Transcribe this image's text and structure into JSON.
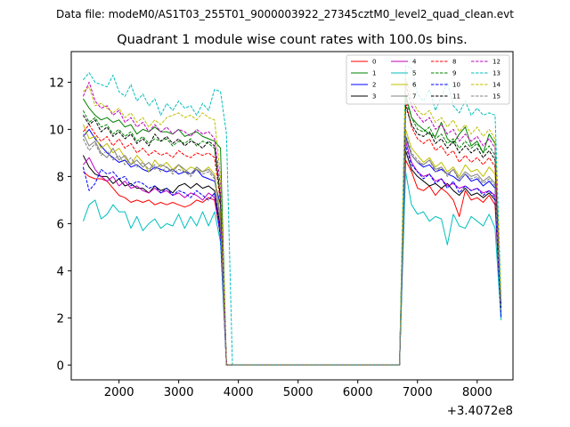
{
  "chart_data": {
    "type": "line",
    "suptitle": "Data file: modeM0/AS1T03_255T01_9000003922_27345cztM0_level2_quad_clean.evt",
    "title": "Quadrant 1 module wise count rates with 100.0s bins.",
    "xlabel": "",
    "ylabel": "",
    "x_offset_label": "+3.4072e8",
    "xlim": [
      1200,
      8600
    ],
    "ylim": [
      -0.63,
      13.3
    ],
    "x_ticks": [
      2000,
      3000,
      4000,
      5000,
      6000,
      7000,
      8000
    ],
    "x_tick_labels": [
      "2000",
      "3000",
      "4000",
      "5000",
      "6000",
      "7000",
      "8000"
    ],
    "y_ticks": [
      0,
      2,
      4,
      6,
      8,
      10,
      12
    ],
    "y_tick_labels": [
      "0",
      "2",
      "4",
      "6",
      "8",
      "10",
      "12"
    ],
    "grid": false,
    "legend_position": "top-right",
    "legend_columns": 4,
    "x_start": 1400,
    "x_step": 100,
    "series": [
      {
        "name": "0",
        "color": "#ff0000",
        "dashed": false,
        "values": [
          8.2,
          8.0,
          7.9,
          7.9,
          7.8,
          7.5,
          7.2,
          7.1,
          6.9,
          7.0,
          6.9,
          7.0,
          6.8,
          6.9,
          6.8,
          6.9,
          6.8,
          6.7,
          6.8,
          7.0,
          6.9,
          7.1,
          7.0,
          5.5,
          0,
          0,
          0,
          0,
          0,
          0,
          0,
          0,
          0,
          0,
          0,
          0,
          0,
          0,
          0,
          0,
          0,
          0,
          0,
          0,
          0,
          0,
          0,
          0,
          0,
          0,
          0,
          0,
          0,
          0,
          8.7,
          8.2,
          7.5,
          7.4,
          7.6,
          7.2,
          7.5,
          7.3,
          7.0,
          6.3,
          7.4,
          7.0,
          7.1,
          6.9,
          7.2,
          6.8,
          2.1
        ]
      },
      {
        "name": "1",
        "color": "#008000",
        "dashed": false,
        "values": [
          11.3,
          10.9,
          10.6,
          10.4,
          10.5,
          10.3,
          10.4,
          10.1,
          10.2,
          9.8,
          10.0,
          9.9,
          10.1,
          9.9,
          9.9,
          9.8,
          10.0,
          9.7,
          9.8,
          9.9,
          9.7,
          9.6,
          9.5,
          9.2,
          0,
          0,
          0,
          0,
          0,
          0,
          0,
          0,
          0,
          0,
          0,
          0,
          0,
          0,
          0,
          0,
          0,
          0,
          0,
          0,
          0,
          0,
          0,
          0,
          0,
          0,
          0,
          0,
          0,
          0,
          11.5,
          10.5,
          10.2,
          10.0,
          9.8,
          9.7,
          10.3,
          9.6,
          9.4,
          9.8,
          10.1,
          9.3,
          9.5,
          9.0,
          9.8,
          9.4,
          2.5
        ]
      },
      {
        "name": "2",
        "color": "#0000ff",
        "dashed": false,
        "values": [
          9.7,
          10.0,
          9.6,
          9.3,
          9.0,
          8.8,
          8.6,
          8.7,
          8.4,
          8.5,
          8.3,
          8.2,
          8.4,
          8.3,
          8.2,
          8.3,
          8.1,
          8.2,
          8.1,
          8.3,
          8.0,
          7.9,
          7.8,
          6.8,
          0,
          0,
          0,
          0,
          0,
          0,
          0,
          0,
          0,
          0,
          0,
          0,
          0,
          0,
          0,
          0,
          0,
          0,
          0,
          0,
          0,
          0,
          0,
          0,
          0,
          0,
          0,
          0,
          0,
          0,
          9.7,
          8.9,
          8.6,
          8.4,
          8.5,
          8.2,
          8.3,
          8.1,
          8.0,
          7.8,
          8.1,
          7.8,
          7.9,
          7.6,
          7.8,
          7.5,
          2.0
        ]
      },
      {
        "name": "3",
        "color": "#000000",
        "dashed": false,
        "values": [
          8.9,
          8.4,
          8.1,
          8.0,
          8.0,
          7.7,
          7.9,
          7.6,
          7.7,
          7.5,
          7.5,
          7.3,
          7.6,
          7.4,
          7.5,
          7.3,
          7.6,
          7.7,
          7.5,
          7.7,
          7.5,
          7.6,
          7.4,
          5.8,
          0,
          0,
          0,
          0,
          0,
          0,
          0,
          0,
          0,
          0,
          0,
          0,
          0,
          0,
          0,
          0,
          0,
          0,
          0,
          0,
          0,
          0,
          0,
          0,
          0,
          0,
          0,
          0,
          0,
          0,
          9.1,
          8.3,
          8.0,
          7.8,
          7.6,
          7.7,
          7.5,
          7.7,
          7.4,
          7.2,
          7.5,
          7.2,
          7.3,
          7.1,
          7.3,
          7.0,
          2.3
        ]
      },
      {
        "name": "4",
        "color": "#bf00bf",
        "dashed": false,
        "values": [
          8.5,
          8.8,
          8.3,
          8.0,
          7.8,
          8.0,
          7.6,
          7.8,
          7.5,
          7.6,
          7.4,
          7.3,
          7.5,
          7.3,
          7.4,
          7.2,
          7.3,
          7.1,
          7.3,
          7.2,
          7.0,
          7.3,
          7.1,
          5.6,
          0,
          0,
          0,
          0,
          0,
          0,
          0,
          0,
          0,
          0,
          0,
          0,
          0,
          0,
          0,
          0,
          0,
          0,
          0,
          0,
          0,
          0,
          0,
          0,
          0,
          0,
          0,
          0,
          0,
          0,
          9.5,
          8.6,
          8.2,
          8.0,
          8.1,
          7.8,
          7.9,
          7.6,
          7.7,
          7.5,
          7.6,
          7.4,
          7.5,
          7.3,
          7.4,
          7.2,
          2.2
        ]
      },
      {
        "name": "5",
        "color": "#00bfbf",
        "dashed": false,
        "values": [
          6.1,
          6.8,
          7.0,
          6.2,
          6.4,
          6.8,
          6.5,
          6.5,
          5.8,
          6.3,
          5.7,
          6.0,
          6.2,
          5.8,
          6.0,
          5.9,
          6.4,
          5.8,
          6.3,
          5.9,
          6.5,
          5.9,
          6.5,
          5.2,
          0,
          0,
          0,
          0,
          0,
          0,
          0,
          0,
          0,
          0,
          0,
          0,
          0,
          0,
          0,
          0,
          0,
          0,
          0,
          0,
          0,
          0,
          0,
          0,
          0,
          0,
          0,
          0,
          0,
          0,
          8.2,
          6.8,
          6.4,
          6.5,
          6.1,
          6.3,
          6.2,
          5.1,
          6.4,
          5.9,
          5.8,
          6.3,
          6.1,
          5.9,
          6.4,
          5.8,
          1.9
        ]
      },
      {
        "name": "6",
        "color": "#bfbf00",
        "dashed": false,
        "values": [
          10.2,
          9.6,
          9.7,
          9.2,
          9.4,
          9.0,
          9.2,
          8.8,
          8.5,
          8.9,
          8.6,
          8.2,
          8.7,
          8.4,
          8.6,
          8.3,
          8.5,
          8.2,
          8.4,
          8.3,
          8.2,
          8.4,
          8.1,
          6.3,
          0,
          0,
          0,
          0,
          0,
          0,
          0,
          0,
          0,
          0,
          0,
          0,
          0,
          0,
          0,
          0,
          0,
          0,
          0,
          0,
          0,
          0,
          0,
          0,
          0,
          0,
          0,
          0,
          0,
          0,
          10.0,
          9.2,
          8.9,
          8.6,
          8.8,
          8.4,
          8.6,
          8.2,
          8.4,
          8.0,
          8.5,
          8.2,
          8.3,
          8.0,
          8.4,
          8.1,
          2.4
        ]
      },
      {
        "name": "7",
        "color": "#808080",
        "dashed": false,
        "values": [
          9.8,
          9.3,
          9.5,
          9.0,
          8.8,
          9.2,
          8.7,
          8.9,
          8.5,
          8.7,
          8.4,
          8.6,
          8.3,
          8.5,
          8.4,
          8.2,
          8.5,
          8.3,
          8.1,
          8.4,
          8.2,
          8.3,
          8.0,
          6.1,
          0,
          0,
          0,
          0,
          0,
          0,
          0,
          0,
          0,
          0,
          0,
          0,
          0,
          0,
          0,
          0,
          0,
          0,
          0,
          0,
          0,
          0,
          0,
          0,
          0,
          0,
          0,
          0,
          0,
          0,
          9.6,
          8.9,
          8.6,
          8.5,
          8.7,
          8.3,
          8.4,
          8.1,
          8.3,
          7.9,
          8.2,
          8.0,
          8.1,
          7.8,
          8.0,
          7.7,
          2.3
        ]
      },
      {
        "name": "8",
        "color": "#ff0000",
        "dashed": true,
        "values": [
          9.9,
          10.2,
          9.8,
          9.5,
          9.7,
          9.3,
          9.6,
          9.2,
          9.4,
          9.0,
          9.2,
          8.9,
          9.1,
          8.9,
          9.0,
          8.8,
          9.1,
          8.9,
          8.8,
          9.0,
          8.9,
          9.0,
          8.8,
          6.9,
          0,
          0,
          0,
          0,
          0,
          0,
          0,
          0,
          0,
          0,
          0,
          0,
          0,
          0,
          0,
          0,
          0,
          0,
          0,
          0,
          0,
          0,
          0,
          0,
          0,
          0,
          0,
          0,
          0,
          0,
          11.2,
          10.1,
          9.6,
          9.4,
          9.6,
          9.1,
          9.3,
          8.9,
          9.1,
          8.6,
          8.9,
          8.6,
          8.8,
          8.5,
          8.8,
          8.4,
          2.7
        ]
      },
      {
        "name": "9",
        "color": "#008000",
        "dashed": true,
        "values": [
          10.8,
          10.3,
          10.5,
          10.1,
          10.2,
          9.8,
          10.0,
          9.7,
          9.9,
          9.5,
          9.7,
          9.4,
          9.6,
          9.5,
          9.6,
          9.3,
          9.5,
          9.4,
          9.6,
          9.3,
          9.5,
          9.4,
          9.2,
          7.0,
          0,
          0,
          0,
          0,
          0,
          0,
          0,
          0,
          0,
          0,
          0,
          0,
          0,
          0,
          0,
          0,
          0,
          0,
          0,
          0,
          0,
          0,
          0,
          0,
          0,
          0,
          0,
          0,
          0,
          0,
          11.3,
          10.5,
          10.0,
          9.9,
          10.1,
          9.6,
          9.8,
          9.4,
          9.6,
          9.2,
          9.5,
          9.2,
          9.4,
          9.0,
          9.3,
          8.9,
          2.6
        ]
      },
      {
        "name": "10",
        "color": "#0000ff",
        "dashed": true,
        "values": [
          8.4,
          7.4,
          7.7,
          8.3,
          8.1,
          8.2,
          7.9,
          8.0,
          7.6,
          7.8,
          7.7,
          7.5,
          7.6,
          7.3,
          7.5,
          7.2,
          7.4,
          7.3,
          7.1,
          7.4,
          7.2,
          7.0,
          7.3,
          5.4,
          0,
          0,
          0,
          0,
          0,
          0,
          0,
          0,
          0,
          0,
          0,
          0,
          0,
          0,
          0,
          0,
          0,
          0,
          0,
          0,
          0,
          0,
          0,
          0,
          0,
          0,
          0,
          0,
          0,
          0,
          9.3,
          8.5,
          8.2,
          7.9,
          8.1,
          7.7,
          7.9,
          7.5,
          7.8,
          7.3,
          7.6,
          7.4,
          7.5,
          7.2,
          7.4,
          7.1,
          2.0
        ]
      },
      {
        "name": "11",
        "color": "#000000",
        "dashed": true,
        "values": [
          10.6,
          10.2,
          10.4,
          9.9,
          10.1,
          9.7,
          9.9,
          9.6,
          9.8,
          9.4,
          9.6,
          9.3,
          9.8,
          9.5,
          9.7,
          9.4,
          9.6,
          9.3,
          9.5,
          9.4,
          9.2,
          9.5,
          9.3,
          7.1,
          0,
          0,
          0,
          0,
          0,
          0,
          0,
          0,
          0,
          0,
          0,
          0,
          0,
          0,
          0,
          0,
          0,
          0,
          0,
          0,
          0,
          0,
          0,
          0,
          0,
          0,
          0,
          0,
          0,
          0,
          11.0,
          10.2,
          9.8,
          9.7,
          9.9,
          9.4,
          9.6,
          9.2,
          9.5,
          9.0,
          9.3,
          9.0,
          9.2,
          8.8,
          9.1,
          8.7,
          2.4
        ]
      },
      {
        "name": "12",
        "color": "#bf00bf",
        "dashed": true,
        "values": [
          11.4,
          12.0,
          11.2,
          10.9,
          11.0,
          10.6,
          10.8,
          10.3,
          10.5,
          10.1,
          10.3,
          9.9,
          10.2,
          9.9,
          10.1,
          9.8,
          10.0,
          9.9,
          9.7,
          10.0,
          9.8,
          9.9,
          9.6,
          7.6,
          0,
          0,
          0,
          0,
          0,
          0,
          0,
          0,
          0,
          0,
          0,
          0,
          0,
          0,
          0,
          0,
          0,
          0,
          0,
          0,
          0,
          0,
          0,
          0,
          0,
          0,
          0,
          0,
          0,
          0,
          11.9,
          11.0,
          10.6,
          10.3,
          10.5,
          10.0,
          10.2,
          9.8,
          10.0,
          9.5,
          9.8,
          9.5,
          9.7,
          9.3,
          9.6,
          9.2,
          2.6
        ]
      },
      {
        "name": "13",
        "color": "#00bfbf",
        "dashed": true,
        "values": [
          12.1,
          12.4,
          12.0,
          11.9,
          11.8,
          12.3,
          11.6,
          11.4,
          11.9,
          11.2,
          11.5,
          11.0,
          11.3,
          10.6,
          11.1,
          10.8,
          11.2,
          10.9,
          11.0,
          10.6,
          11.1,
          10.8,
          11.7,
          11.6,
          9.8,
          0,
          0,
          0,
          0,
          0,
          0,
          0,
          0,
          0,
          0,
          0,
          0,
          0,
          0,
          0,
          0,
          0,
          0,
          0,
          0,
          0,
          0,
          0,
          0,
          0,
          0,
          0,
          0,
          0,
          12.7,
          12.6,
          11.5,
          11.2,
          11.7,
          10.8,
          11.4,
          12.0,
          11.0,
          10.7,
          11.2,
          10.6,
          10.9,
          10.6,
          10.7,
          10.6,
          2.8
        ]
      },
      {
        "name": "14",
        "color": "#bfbf00",
        "dashed": true,
        "values": [
          11.6,
          11.8,
          11.0,
          11.1,
          10.9,
          10.7,
          10.9,
          10.5,
          10.7,
          10.3,
          10.5,
          10.1,
          10.4,
          10.2,
          10.5,
          10.6,
          10.7,
          10.5,
          10.6,
          10.4,
          10.7,
          10.5,
          10.4,
          8.0,
          0,
          0,
          0,
          0,
          0,
          0,
          0,
          0,
          0,
          0,
          0,
          0,
          0,
          0,
          0,
          0,
          0,
          0,
          0,
          0,
          0,
          0,
          0,
          0,
          0,
          0,
          0,
          0,
          0,
          0,
          12.2,
          11.3,
          10.8,
          10.6,
          10.8,
          10.3,
          10.5,
          10.1,
          10.4,
          9.9,
          10.2,
          9.8,
          10.1,
          9.7,
          10.0,
          9.6,
          2.7
        ]
      },
      {
        "name": "15",
        "color": "#808080",
        "dashed": true,
        "values": [
          9.6,
          9.1,
          9.4,
          8.9,
          9.1,
          8.7,
          8.9,
          8.5,
          8.8,
          8.4,
          8.6,
          8.3,
          8.5,
          8.2,
          8.4,
          8.1,
          8.3,
          8.2,
          8.0,
          8.3,
          8.1,
          8.2,
          7.9,
          6.0,
          0,
          0,
          0,
          0,
          0,
          0,
          0,
          0,
          0,
          0,
          0,
          0,
          0,
          0,
          0,
          0,
          0,
          0,
          0,
          0,
          0,
          0,
          0,
          0,
          0,
          0,
          0,
          0,
          0,
          0,
          9.8,
          9.0,
          8.7,
          8.5,
          8.7,
          8.2,
          8.4,
          8.0,
          8.3,
          7.8,
          8.1,
          7.9,
          8.0,
          7.7,
          7.9,
          7.6,
          2.3
        ]
      }
    ]
  }
}
